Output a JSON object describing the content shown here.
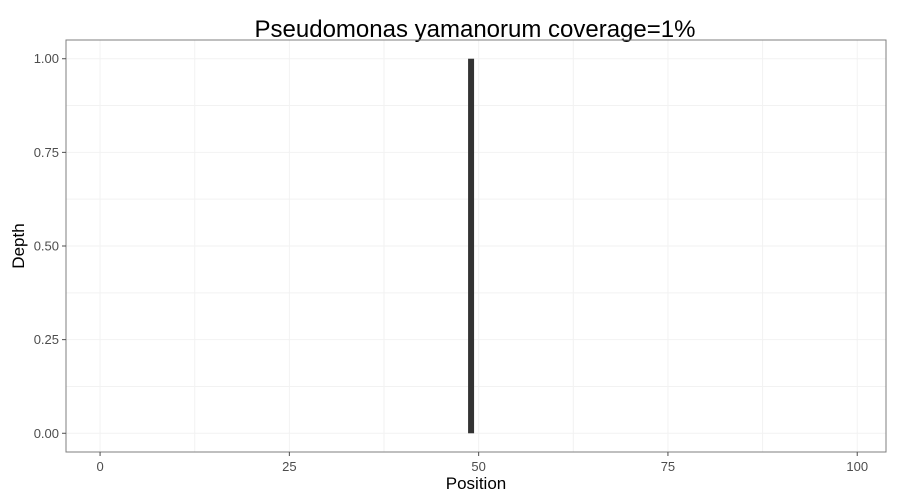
{
  "chart_data": {
    "type": "bar",
    "title": "Pseudomonas yamanorum coverage=1%",
    "xlabel": "Position",
    "ylabel": "Depth",
    "x": [
      49
    ],
    "values": [
      1.0
    ],
    "xlim": [
      -4.5,
      103.8
    ],
    "ylim": [
      -0.05,
      1.05
    ],
    "x_ticks": [
      0,
      25,
      50,
      75,
      100
    ],
    "y_ticks": [
      0.0,
      0.25,
      0.5,
      0.75,
      1.0
    ],
    "x_tick_labels": [
      "0",
      "25",
      "50",
      "75",
      "100"
    ],
    "y_tick_labels": [
      "0.00",
      "0.25",
      "0.50",
      "0.75",
      "1.00"
    ],
    "grid": true,
    "bar_color": "#333333",
    "grid_color": "#f2f2f2",
    "panel_border_color": "#7f7f7f"
  }
}
